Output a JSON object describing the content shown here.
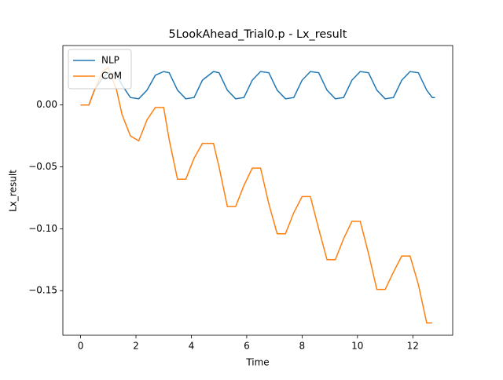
{
  "chart_data": {
    "type": "line",
    "title": "5LookAhead_Trial0.p - Lx_result",
    "xlabel": "Time",
    "ylabel": "Lx_result",
    "x": [
      0,
      0.3,
      0.5,
      0.8,
      1.0,
      1.3,
      1.5,
      1.8,
      2.1,
      2.4,
      2.7,
      3.0,
      3.2,
      3.5,
      3.8,
      4.1,
      4.4,
      4.8,
      5.0,
      5.3,
      5.6,
      5.9,
      6.2,
      6.5,
      6.8,
      7.1,
      7.4,
      7.7,
      8.0,
      8.3,
      8.6,
      8.9,
      9.2,
      9.5,
      9.8,
      10.1,
      10.4,
      10.7,
      11.0,
      11.3,
      11.6,
      11.9,
      12.2,
      12.5,
      12.7,
      12.8
    ],
    "series": [
      {
        "name": "NLP",
        "color": "#1f77b4",
        "values": [
          0,
          0,
          0.012,
          0.022,
          0.026,
          0.025,
          0.016,
          0.006,
          0.005,
          0.012,
          0.024,
          0.027,
          0.026,
          0.012,
          0.005,
          0.006,
          0.02,
          0.027,
          0.026,
          0.012,
          0.005,
          0.006,
          0.02,
          0.027,
          0.026,
          0.012,
          0.005,
          0.006,
          0.02,
          0.027,
          0.026,
          0.012,
          0.005,
          0.006,
          0.02,
          0.027,
          0.026,
          0.012,
          0.005,
          0.006,
          0.02,
          0.027,
          0.026,
          0.012,
          0.006,
          0.006
        ]
      },
      {
        "name": "CoM",
        "color": "#ff7f0e",
        "values": [
          0,
          0,
          0.012,
          0.027,
          0.03,
          0.012,
          -0.008,
          -0.025,
          -0.029,
          -0.012,
          -0.002,
          -0.002,
          -0.028,
          -0.06,
          -0.06,
          -0.043,
          -0.031,
          -0.031,
          -0.05,
          -0.082,
          -0.082,
          -0.065,
          -0.051,
          -0.051,
          -0.08,
          -0.104,
          -0.104,
          -0.087,
          -0.074,
          -0.074,
          -0.1,
          -0.125,
          -0.125,
          -0.108,
          -0.094,
          -0.094,
          -0.12,
          -0.149,
          -0.149,
          -0.135,
          -0.122,
          -0.122,
          -0.145,
          -0.176,
          -0.176,
          null
        ]
      }
    ],
    "xlim": [
      -0.64,
      13.44
    ],
    "ylim": [
      -0.186,
      0.048
    ],
    "xticks": [
      0,
      2,
      4,
      6,
      8,
      10,
      12
    ],
    "yticks": [
      {
        "value": -0.15,
        "label": "−0.15"
      },
      {
        "value": -0.1,
        "label": "−0.10"
      },
      {
        "value": -0.05,
        "label": "−0.05"
      },
      {
        "value": 0,
        "label": "0.00"
      }
    ],
    "legend": "upper left"
  }
}
